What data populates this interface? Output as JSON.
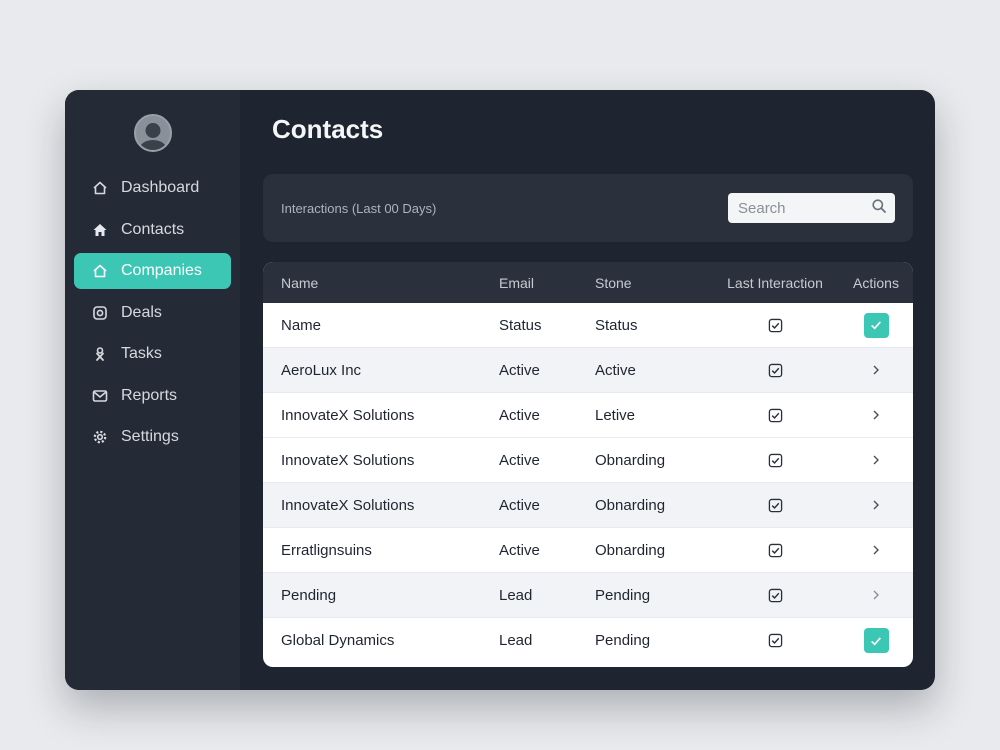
{
  "sidebar": {
    "avatar_icon": "user-avatar-icon",
    "items": [
      {
        "label": "Dashboard",
        "icon": "house-outline-icon",
        "active": false
      },
      {
        "label": "Contacts",
        "icon": "house-filled-icon",
        "active": false
      },
      {
        "label": "Companies",
        "icon": "house-outline-icon",
        "active": true
      },
      {
        "label": "Deals",
        "icon": "instagram-like-icon",
        "active": false
      },
      {
        "label": "Tasks",
        "icon": "tasks-icon",
        "active": false
      },
      {
        "label": "Reports",
        "icon": "envelope-icon",
        "active": false
      },
      {
        "label": "Settings",
        "icon": "gear-icon",
        "active": false
      }
    ]
  },
  "main": {
    "title": "Contacts",
    "filter_label": "Interactions (Last 00 Days)",
    "search_placeholder": "Search"
  },
  "table": {
    "columns": [
      "Name",
      "Email",
      "Stone",
      "Last Interaction",
      "Actions"
    ],
    "rows": [
      {
        "name": "Name",
        "email": "Status",
        "stone": "Status",
        "action": "check-button"
      },
      {
        "name": "AeroLux Inc",
        "email": "Active",
        "stone": "Active",
        "action": "chevron"
      },
      {
        "name": "InnovateX Solutions",
        "email": "Active",
        "stone": "Letive",
        "action": "chevron"
      },
      {
        "name": "InnovateX Solutions",
        "email": "Active",
        "stone": "Obnarding",
        "action": "chevron"
      },
      {
        "name": "InnovateX Solutions",
        "email": "Active",
        "stone": "Obnarding",
        "action": "chevron"
      },
      {
        "name": "Erratlignsuins",
        "email": "Active",
        "stone": "Obnarding",
        "action": "chevron"
      },
      {
        "name": "Pending",
        "email": "Lead",
        "stone": "Pending",
        "action": "chevron"
      },
      {
        "name": "Global Dynamics",
        "email": "Lead",
        "stone": "Pending",
        "action": "check-button"
      }
    ]
  },
  "colors": {
    "accent": "#3cc6b4",
    "window_bg": "#1e2430",
    "sidebar_bg": "#252b36"
  }
}
